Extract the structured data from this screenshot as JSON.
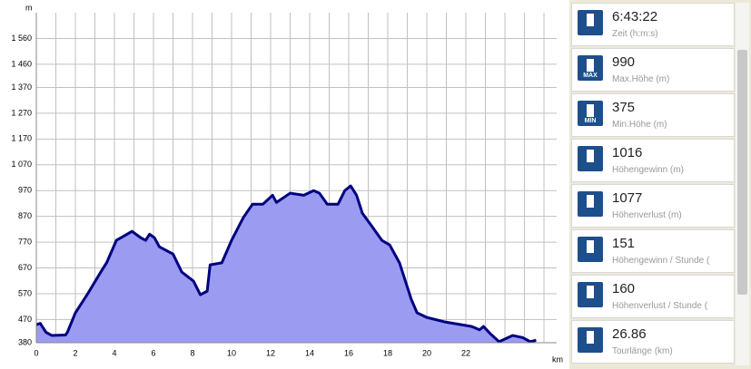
{
  "chart_data": {
    "type": "area",
    "y_label": "m",
    "x_label": "km",
    "x": [
      0,
      0.2,
      0.5,
      0.8,
      1.5,
      1.6,
      2.0,
      2.6,
      3.3,
      3.6,
      4.1,
      4.65,
      4.9,
      5.35,
      5.6,
      5.8,
      6.05,
      6.3,
      7.0,
      7.45,
      8.05,
      8.4,
      8.75,
      8.9,
      9.5,
      10.0,
      10.6,
      11.07,
      11.6,
      12.1,
      12.3,
      13.0,
      13.7,
      14.2,
      14.5,
      14.9,
      15.45,
      15.8,
      16.1,
      16.4,
      16.7,
      17.2,
      17.7,
      18.1,
      18.6,
      19.2,
      19.5,
      20.0,
      20.9,
      22.3,
      22.7,
      22.9,
      23.25,
      23.7,
      24.4,
      24.9,
      25.3,
      25.6
    ],
    "values": [
      450,
      455,
      420,
      408,
      410,
      422,
      496,
      566,
      654,
      690,
      777,
      801,
      812,
      787,
      777,
      801,
      787,
      752,
      724,
      654,
      619,
      566,
      580,
      682,
      690,
      777,
      865,
      917,
      917,
      952,
      924,
      960,
      952,
      970,
      960,
      917,
      917,
      970,
      988,
      952,
      882,
      830,
      777,
      759,
      690,
      549,
      496,
      478,
      461,
      443,
      430,
      443,
      415,
      384,
      408,
      400,
      384,
      390
    ],
    "color": "#9b9bf2",
    "line_color": "#000080",
    "xlim": [
      0,
      26.65
    ],
    "ylim": [
      380,
      1660
    ],
    "xticks": [
      0,
      2,
      4,
      6,
      8,
      10,
      12,
      14,
      16,
      18,
      20,
      22
    ],
    "xgrid": [
      0,
      1,
      2,
      3,
      4,
      5,
      6,
      7,
      8,
      9,
      10,
      11,
      12,
      13,
      14,
      15,
      16,
      17,
      18,
      19,
      20,
      21,
      22,
      23,
      24,
      25,
      26
    ],
    "yticks": [
      380,
      470,
      570,
      670,
      770,
      870,
      970,
      {
        "value": 1070,
        "label": "1 070"
      },
      {
        "value": 1170,
        "label": "1 170"
      },
      {
        "value": 1270,
        "label": "1 270"
      },
      {
        "value": 1370,
        "label": "1 370"
      },
      {
        "value": 1460,
        "label": "1 460"
      },
      {
        "value": 1560,
        "label": "1 560"
      }
    ],
    "grid": true
  },
  "stats": [
    {
      "value": "6:43:22",
      "label": "Zeit (h:m:s)"
    },
    {
      "value": "990",
      "label": "Max.Höhe (m)",
      "icon_text": "MAX"
    },
    {
      "value": "375",
      "label": "Min.Höhe (m)",
      "icon_text": "MIN"
    },
    {
      "value": "1016",
      "label": "Höhengewinn (m)"
    },
    {
      "value": "1077",
      "label": "Höhenverlust (m)"
    },
    {
      "value": "151",
      "label": "Höhengewinn  / Stunde ("
    },
    {
      "value": "160",
      "label": "Höhenverlust  / Stunde ("
    },
    {
      "value": "26.86",
      "label": "Tourlänge (km)"
    }
  ]
}
